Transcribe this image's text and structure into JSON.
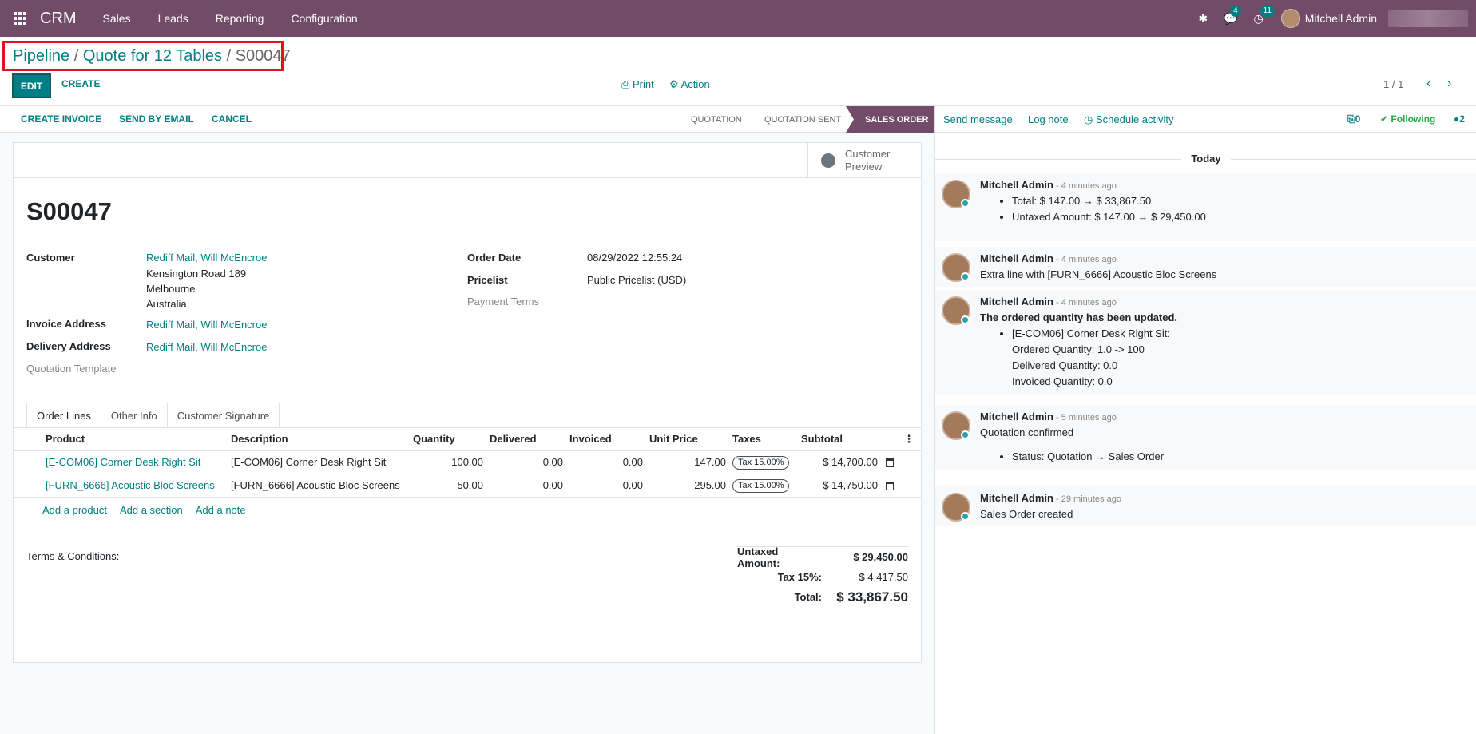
{
  "topbar": {
    "brand": "CRM",
    "menu": [
      "Sales",
      "Leads",
      "Reporting",
      "Configuration"
    ],
    "messages_count": "4",
    "activities_count": "11",
    "user_name": "Mitchell Admin"
  },
  "control": {
    "breadcrumb": {
      "pipeline": "Pipeline",
      "sep": " / ",
      "quote": "Quote for 12 Tables",
      "current": "S00047"
    },
    "edit_label": "EDIT",
    "create_label": "CREATE",
    "print_label": "Print",
    "action_label": "Action",
    "pager": "1 / 1"
  },
  "statusbar": {
    "create_invoice": "CREATE INVOICE",
    "send_email": "SEND BY EMAIL",
    "cancel": "CANCEL",
    "stages": [
      "QUOTATION",
      "QUOTATION SENT",
      "SALES ORDER"
    ],
    "active_stage": "SALES ORDER"
  },
  "sheet": {
    "customer_preview": [
      "Customer",
      "Preview"
    ],
    "title": "S00047",
    "fields": {
      "customer_label": "Customer",
      "customer_value": "Rediff Mail, Will McEncroe",
      "address_lines": [
        "Kensington Road 189",
        "Melbourne",
        "Australia"
      ],
      "invoice_address_label": "Invoice Address",
      "invoice_address_value": "Rediff Mail, Will McEncroe",
      "delivery_address_label": "Delivery Address",
      "delivery_address_value": "Rediff Mail, Will McEncroe",
      "quotation_template_label": "Quotation Template",
      "order_date_label": "Order Date",
      "order_date_value": "08/29/2022 12:55:24",
      "pricelist_label": "Pricelist",
      "pricelist_value": "Public Pricelist (USD)",
      "payment_terms_label": "Payment Terms"
    },
    "tabs": [
      "Order Lines",
      "Other Info",
      "Customer Signature"
    ],
    "columns": [
      "Product",
      "Description",
      "Quantity",
      "Delivered",
      "Invoiced",
      "Unit Price",
      "Taxes",
      "Subtotal"
    ],
    "lines": [
      {
        "product": "[E-COM06] Corner Desk Right Sit",
        "description": "[E-COM06] Corner Desk Right Sit",
        "quantity": "100.00",
        "delivered": "0.00",
        "invoiced": "0.00",
        "unit_price": "147.00",
        "tax": "Tax 15.00%",
        "subtotal": "$ 14,700.00"
      },
      {
        "product": "[FURN_6666] Acoustic Bloc Screens",
        "description": "[FURN_6666] Acoustic Bloc Screens",
        "quantity": "50.00",
        "delivered": "0.00",
        "invoiced": "0.00",
        "unit_price": "295.00",
        "tax": "Tax 15.00%",
        "subtotal": "$ 14,750.00"
      }
    ],
    "add_links": [
      "Add a product",
      "Add a section",
      "Add a note"
    ],
    "terms_label": "Terms & Conditions:",
    "totals": {
      "untaxed_label": "Untaxed Amount:",
      "untaxed_value": "$ 29,450.00",
      "tax_label": "Tax 15%:",
      "tax_value": "$ 4,417.50",
      "total_label": "Total:",
      "total_value": "$ 33,867.50"
    }
  },
  "chatter": {
    "send_message": "Send message",
    "log_note": "Log note",
    "schedule_activity": "Schedule activity",
    "attachments": "0",
    "following": "Following",
    "followers": "2",
    "today": "Today",
    "messages": [
      {
        "author": "Mitchell Admin",
        "ago": " - 4 minutes ago",
        "items": [
          "Total: $ 147.00 → $ 33,867.50",
          "Untaxed Amount: $ 147.00 → $ 29,450.00"
        ]
      },
      {
        "author": "Mitchell Admin",
        "ago": " - 4 minutes ago",
        "text": "Extra line with [FURN_6666] Acoustic Bloc Screens"
      },
      {
        "author": "Mitchell Admin",
        "ago": " - 4 minutes ago",
        "text": "The ordered quantity has been updated.",
        "items": [
          "[E-COM06] Corner Desk Right Sit:"
        ],
        "sub": [
          "Ordered Quantity: 1.0 -> 100",
          "Delivered Quantity: 0.0",
          "Invoiced Quantity: 0.0"
        ]
      },
      {
        "author": "Mitchell Admin",
        "ago": " - 5 minutes ago",
        "text": "Quotation confirmed",
        "items": [
          "Status: Quotation → Sales Order"
        ]
      },
      {
        "author": "Mitchell Admin",
        "ago": " - 29 minutes ago",
        "text": "Sales Order created"
      }
    ]
  }
}
